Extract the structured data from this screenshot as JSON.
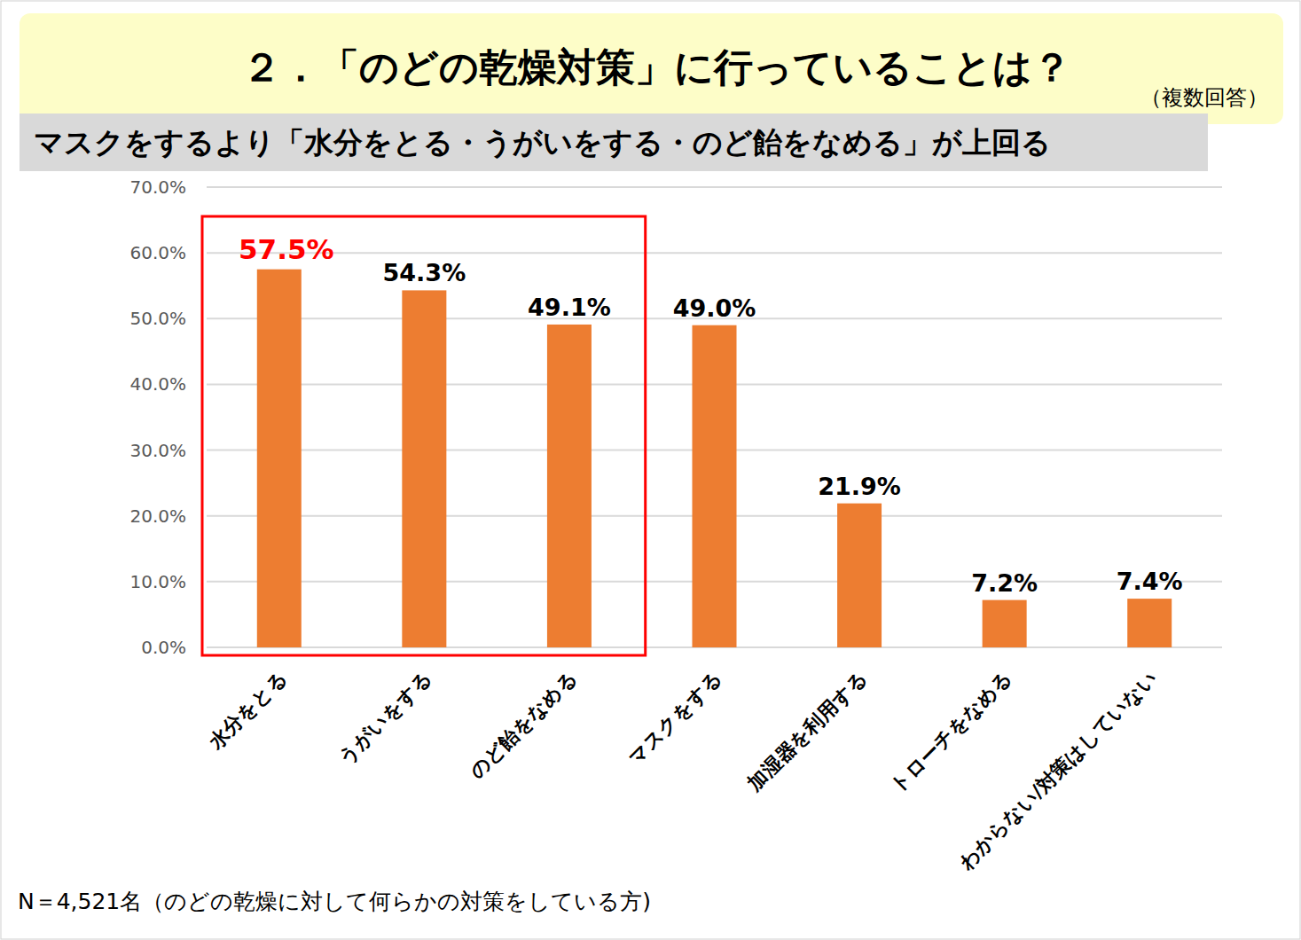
{
  "chart_data": {
    "type": "bar",
    "title": "２．「のどの乾燥対策」に行っていることは？",
    "subtitle": "マスクをするより「水分をとる・うがいをする・のど飴をなめる」が上回る",
    "annotations": [
      "（複数回答）",
      "N＝4,521名（のどの乾燥に対して何らかの対策をしている方)"
    ],
    "categories": [
      "水分をとる",
      "うがいをする",
      "のど飴をなめる",
      "マスクをする",
      "加湿器を利用する",
      "トローチをなめる",
      "わからない/対策はしていない"
    ],
    "values": [
      57.5,
      54.3,
      49.1,
      49.0,
      21.9,
      7.2,
      7.4
    ],
    "value_labels": [
      "57.5%",
      "54.3%",
      "49.1%",
      "49.0%",
      "21.9%",
      "7.2%",
      "7.4%"
    ],
    "color": "#ed7d31",
    "ylim": [
      0,
      70
    ],
    "yticks": [
      {
        "value": 0,
        "label": "0.0%"
      },
      {
        "value": 10,
        "label": "10.0%"
      },
      {
        "value": 20,
        "label": "20.0%"
      },
      {
        "value": 30,
        "label": "30.0%"
      },
      {
        "value": 40,
        "label": "40.0%"
      },
      {
        "value": 50,
        "label": "50.0%"
      },
      {
        "value": 60,
        "label": "60.0%"
      },
      {
        "value": 70,
        "label": "70.0%"
      }
    ],
    "grid": true,
    "data_labels": true
  }
}
